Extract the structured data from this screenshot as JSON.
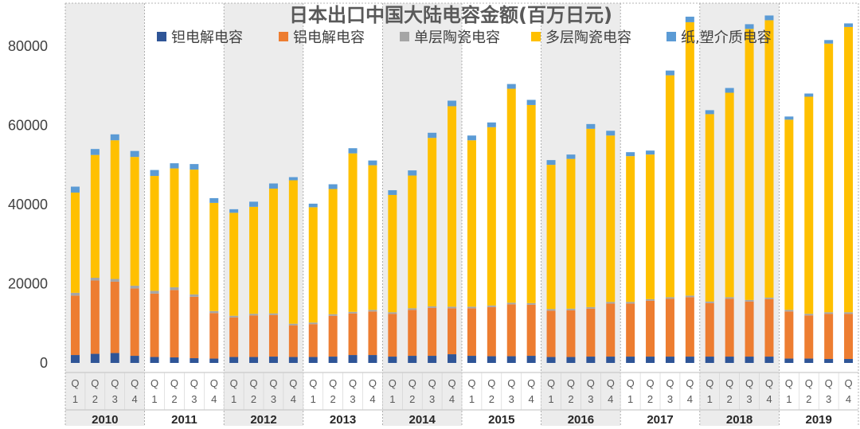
{
  "chart_data": {
    "type": "bar",
    "stacked": true,
    "title": "日本出口中国大陆电容金额(百万日元)",
    "legend_position": "top",
    "ylim": [
      0,
      90000
    ],
    "yticks": [
      0,
      20000,
      40000,
      60000,
      80000
    ],
    "years": [
      "2010",
      "2011",
      "2012",
      "2013",
      "2014",
      "2015",
      "2016",
      "2017",
      "2018",
      "2019"
    ],
    "quarter_labels": [
      [
        "Q",
        "1"
      ],
      [
        "Q",
        "2"
      ],
      [
        "Q",
        "3"
      ],
      [
        "Q",
        "4"
      ]
    ],
    "categories": [
      "2010Q1",
      "2010Q2",
      "2010Q3",
      "2010Q4",
      "2011Q1",
      "2011Q2",
      "2011Q3",
      "2011Q4",
      "2012Q1",
      "2012Q2",
      "2012Q3",
      "2012Q4",
      "2013Q1",
      "2013Q2",
      "2013Q3",
      "2013Q4",
      "2014Q1",
      "2014Q2",
      "2014Q3",
      "2014Q4",
      "2015Q1",
      "2015Q2",
      "2015Q3",
      "2015Q4",
      "2016Q1",
      "2016Q2",
      "2016Q3",
      "2016Q4",
      "2017Q1",
      "2017Q2",
      "2017Q3",
      "2017Q4",
      "2018Q1",
      "2018Q2",
      "2018Q3",
      "2018Q4",
      "2019Q1",
      "2019Q2",
      "2019Q3",
      "2019Q4"
    ],
    "series": [
      {
        "name": "钽电解电容",
        "color": "#2F5597",
        "values": [
          2000,
          2300,
          2500,
          1800,
          1500,
          1400,
          1200,
          1100,
          1500,
          1500,
          1600,
          1500,
          1500,
          1600,
          2000,
          2000,
          1600,
          1800,
          1800,
          2200,
          1800,
          1700,
          1700,
          1800,
          1500,
          1500,
          1600,
          1600,
          1600,
          1600,
          1600,
          1600,
          1600,
          1600,
          1600,
          1600,
          1100,
          1100,
          1000,
          1000
        ]
      },
      {
        "name": "铝电解电容",
        "color": "#ED7D31",
        "values": [
          15000,
          18500,
          18000,
          17000,
          16000,
          17000,
          15500,
          11500,
          10000,
          10500,
          10500,
          8000,
          8300,
          10300,
          10500,
          11000,
          10800,
          11600,
          12100,
          11600,
          12000,
          12400,
          13100,
          12900,
          11700,
          11800,
          12100,
          13400,
          13400,
          14100,
          14600,
          15000,
          13500,
          14600,
          13900,
          14500,
          11900,
          10900,
          11400,
          11400
        ]
      },
      {
        "name": "单层陶瓷电容",
        "color": "#A5A5A5",
        "values": [
          700,
          700,
          700,
          700,
          700,
          700,
          600,
          500,
          400,
          400,
          400,
          400,
          400,
          400,
          400,
          400,
          400,
          400,
          400,
          400,
          400,
          400,
          400,
          400,
          400,
          400,
          400,
          400,
          400,
          400,
          400,
          400,
          400,
          400,
          400,
          400,
          400,
          400,
          400,
          400
        ]
      },
      {
        "name": "多层陶瓷电容",
        "color": "#FFC000",
        "values": [
          25300,
          31000,
          35000,
          32500,
          29000,
          30000,
          31500,
          27300,
          26000,
          27000,
          31500,
          36200,
          29100,
          31600,
          40000,
          36500,
          29600,
          33500,
          42500,
          50600,
          42000,
          45000,
          54000,
          50000,
          36400,
          37800,
          45000,
          42000,
          36800,
          36500,
          56000,
          69000,
          47300,
          51600,
          68400,
          70000,
          48000,
          54800,
          67800,
          72000
        ]
      },
      {
        "name": "纸,塑介质电容",
        "color": "#5B9BD5",
        "values": [
          1500,
          1500,
          1500,
          1500,
          1500,
          1300,
          1400,
          1200,
          900,
          1300,
          1300,
          800,
          900,
          1200,
          1300,
          1200,
          1200,
          1300,
          1300,
          1400,
          1200,
          1200,
          1200,
          1300,
          1200,
          1100,
          1200,
          1200,
          1000,
          1000,
          1200,
          1400,
          1000,
          1200,
          1200,
          1200,
          800,
          800,
          900,
          900
        ]
      }
    ]
  }
}
